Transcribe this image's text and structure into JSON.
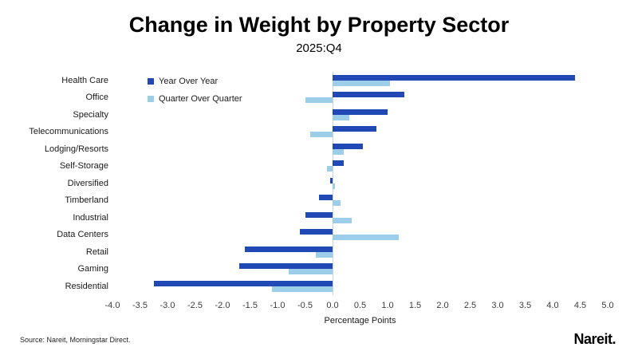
{
  "header": {
    "title": "Change in Weight by Property Sector",
    "subtitle": "2025:Q4"
  },
  "chart_data": {
    "type": "bar",
    "orientation": "horizontal",
    "title": "Change in Weight by Property Sector",
    "subtitle": "2025:Q4",
    "xlabel": "Percentage Points",
    "ylabel": "",
    "xlim": [
      -4.0,
      5.0
    ],
    "xtick_labels": [
      "-4.0",
      "-3.5",
      "-3.0",
      "-2.5",
      "-2.0",
      "-1.5",
      "-1.0",
      "-0.5",
      "0.0",
      "0.5",
      "1.0",
      "1.5",
      "2.0",
      "2.5",
      "3.0",
      "3.5",
      "4.0",
      "4.5",
      "5.0"
    ],
    "grid": false,
    "legend_position": "top-left-inside",
    "categories": [
      "Health Care",
      "Office",
      "Specialty",
      "Telecommunications",
      "Lodging/Resorts",
      "Self-Storage",
      "Diversified",
      "Timberland",
      "Industrial",
      "Data Centers",
      "Retail",
      "Gaming",
      "Residential"
    ],
    "series": [
      {
        "name": "Year Over Year",
        "color": "#2149b5",
        "values": [
          4.4,
          1.3,
          1.0,
          0.8,
          0.55,
          0.2,
          -0.05,
          -0.25,
          -0.5,
          -0.6,
          -1.6,
          -1.7,
          -3.25
        ]
      },
      {
        "name": "Quarter Over Quarter",
        "color": "#9ccde9",
        "values": [
          1.05,
          -0.5,
          0.3,
          -0.4,
          0.2,
          -0.1,
          0.05,
          0.15,
          0.35,
          1.2,
          -0.3,
          -0.8,
          -1.1
        ]
      }
    ]
  },
  "footer": {
    "source": "Source: Nareit, Morningstar Direct.",
    "logo": "Nareit."
  }
}
